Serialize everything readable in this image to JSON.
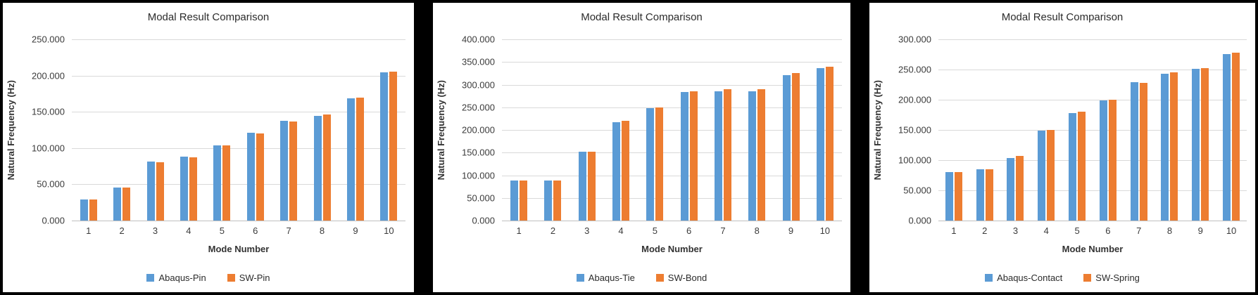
{
  "chart_data": [
    {
      "type": "bar",
      "title": "Modal Result Comparison",
      "xlabel": "Mode Number",
      "ylabel": "Natural Frequency (Hz)",
      "ylim": [
        0,
        250
      ],
      "yticks": [
        "0.000",
        "50.000",
        "100.000",
        "150.000",
        "200.000",
        "250.000"
      ],
      "categories": [
        "1",
        "2",
        "3",
        "4",
        "5",
        "6",
        "7",
        "8",
        "9",
        "10"
      ],
      "grid": true,
      "legend_position": "bottom",
      "series": [
        {
          "name": "Abaqus-Pin",
          "color": "#5B9BD5",
          "values": [
            29,
            46,
            81,
            88,
            104,
            121,
            138,
            144,
            169,
            204
          ]
        },
        {
          "name": "SW-Pin",
          "color": "#ED7D31",
          "values": [
            29,
            46,
            80,
            87,
            104,
            120,
            137,
            146,
            170,
            205
          ]
        }
      ]
    },
    {
      "type": "bar",
      "title": "Modal Result Comparison",
      "xlabel": "Mode Number",
      "ylabel": "Natural Frequency (Hz)",
      "ylim": [
        0,
        400
      ],
      "yticks": [
        "0.000",
        "50.000",
        "100.000",
        "150.000",
        "200.000",
        "250.000",
        "300.000",
        "350.000",
        "400.000"
      ],
      "categories": [
        "1",
        "2",
        "3",
        "4",
        "5",
        "6",
        "7",
        "8",
        "9",
        "10"
      ],
      "grid": true,
      "legend_position": "bottom",
      "series": [
        {
          "name": "Abaqus-Tie",
          "color": "#5B9BD5",
          "values": [
            88,
            88,
            152,
            217,
            248,
            283,
            286,
            286,
            321,
            336
          ]
        },
        {
          "name": "SW-Bond",
          "color": "#ED7D31",
          "values": [
            88,
            88,
            152,
            220,
            249,
            285,
            290,
            290,
            326,
            340
          ]
        }
      ]
    },
    {
      "type": "bar",
      "title": "Modal Result Comparison",
      "xlabel": "Mode Number",
      "ylabel": "Natural Frequency (Hz)",
      "ylim": [
        0,
        300
      ],
      "yticks": [
        "0.000",
        "50.000",
        "100.000",
        "150.000",
        "200.000",
        "250.000",
        "300.000"
      ],
      "categories": [
        "1",
        "2",
        "3",
        "4",
        "5",
        "6",
        "7",
        "8",
        "9",
        "10"
      ],
      "grid": true,
      "legend_position": "bottom",
      "series": [
        {
          "name": "Abaqus-Contact",
          "color": "#5B9BD5",
          "values": [
            80,
            85,
            104,
            149,
            178,
            199,
            229,
            243,
            251,
            276
          ]
        },
        {
          "name": "SW-Spring",
          "color": "#ED7D31",
          "values": [
            80,
            85,
            107,
            150,
            180,
            200,
            228,
            245,
            252,
            278
          ]
        }
      ]
    }
  ]
}
